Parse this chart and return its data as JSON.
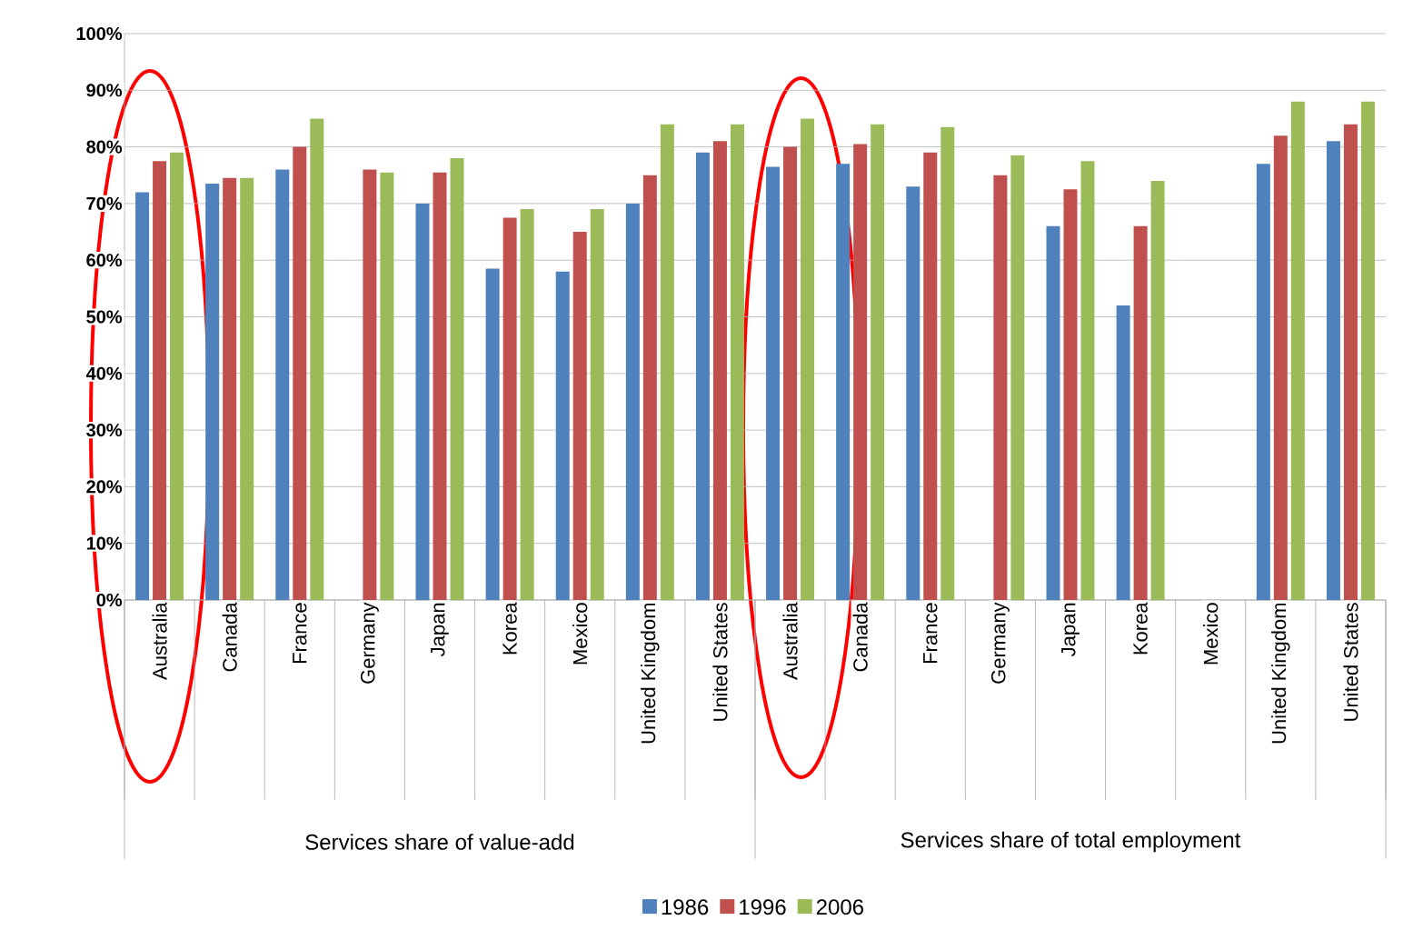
{
  "chart_data": {
    "type": "bar",
    "categories": [
      "Australia",
      "Canada",
      "France",
      "Germany",
      "Japan",
      "Korea",
      "Mexico",
      "United Kingdom",
      "United States",
      "Australia",
      "Canada",
      "France",
      "Germany",
      "Japan",
      "Korea",
      "Mexico",
      "United Kingdom",
      "United States"
    ],
    "series": [
      {
        "name": "1986",
        "color": "#4f81bd",
        "values": [
          72,
          73.5,
          76,
          null,
          70,
          58.5,
          58,
          70,
          79,
          76.5,
          77,
          73,
          null,
          66,
          52,
          null,
          77,
          81
        ]
      },
      {
        "name": "1996",
        "color": "#c0504d",
        "values": [
          77.5,
          74.5,
          80,
          76,
          75.5,
          67.5,
          65,
          75,
          81,
          80,
          80.5,
          79,
          75,
          72.5,
          66,
          null,
          82,
          84
        ]
      },
      {
        "name": "2006",
        "color": "#9bbb59",
        "values": [
          79,
          74.5,
          85,
          75.5,
          78,
          69,
          69,
          84,
          84,
          85,
          84,
          83.5,
          78.5,
          77.5,
          74,
          null,
          88,
          88
        ]
      }
    ],
    "annotations": [
      "Services share of value-add",
      "Services share of total employment"
    ],
    "ylim": [
      0,
      100
    ],
    "yticks": [
      {
        "value": 0,
        "label": "0%"
      },
      {
        "value": 10,
        "label": "10%"
      },
      {
        "value": 20,
        "label": "20%"
      },
      {
        "value": 30,
        "label": "30%"
      },
      {
        "value": 40,
        "label": "40%"
      },
      {
        "value": 50,
        "label": "50%"
      },
      {
        "value": 60,
        "label": "60%"
      },
      {
        "value": 70,
        "label": "70%"
      },
      {
        "value": 80,
        "label": "80%"
      },
      {
        "value": 90,
        "label": "90%"
      },
      {
        "value": 100,
        "label": "100%"
      }
    ],
    "grid": "y",
    "legend": "bottom"
  }
}
